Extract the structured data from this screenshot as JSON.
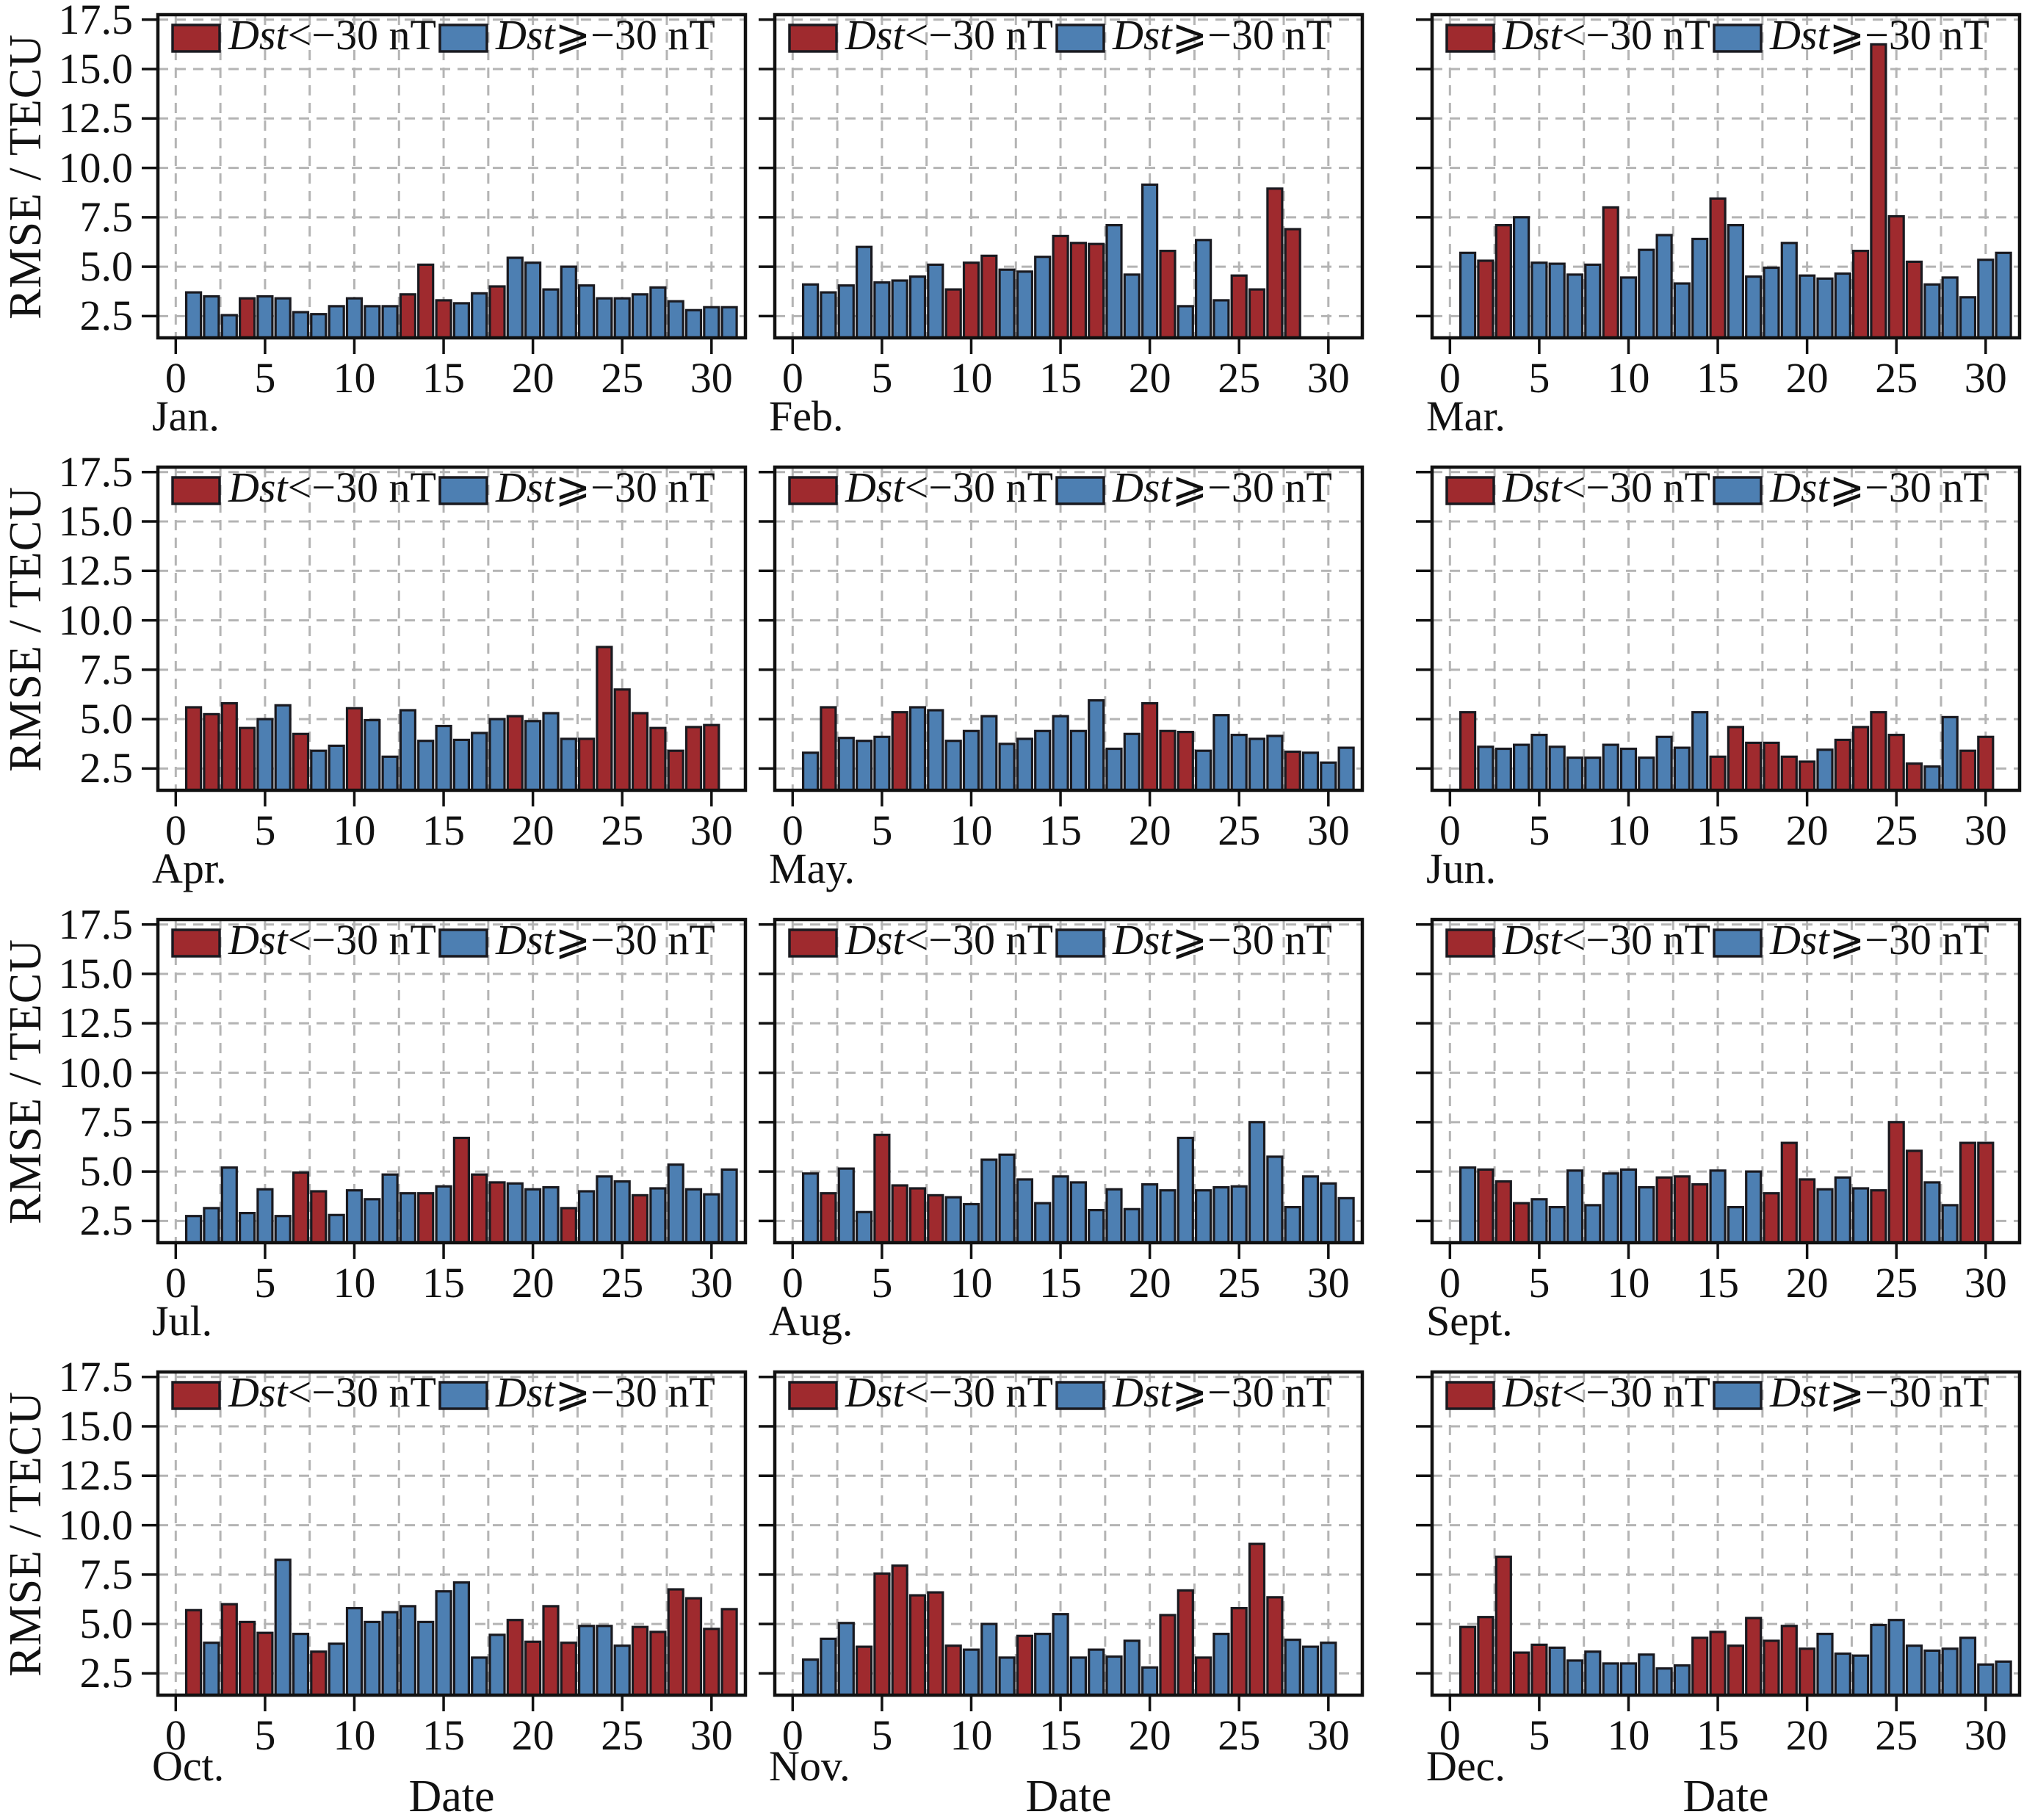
{
  "figure": {
    "ylabel": "RMSE / TECU",
    "xlabel": "Date",
    "y_ticks": [
      17.5,
      15.0,
      12.5,
      10.0,
      7.5,
      5.0,
      2.5
    ],
    "x_ticks": [
      0,
      5,
      10,
      15,
      20,
      25,
      30
    ],
    "ylim": [
      1.4,
      17.75
    ],
    "xlim": [
      -1.0,
      31.9
    ],
    "grid_interval": 2.5,
    "grid_on": true,
    "legend_position": "upper center inside each panel",
    "legend_entries": [
      {
        "variable": "Dst",
        "condition": "<−30 nT",
        "series": "storm"
      },
      {
        "variable": "Dst",
        "condition": "⩾−30 nT",
        "series": "quiet"
      }
    ],
    "colors": {
      "storm": "#9f2a2e",
      "quiet": "#4d7fb2",
      "bar_edge": "#1a1a20",
      "grid": "#b4b4b4",
      "spine": "#111111",
      "background": "#ffffff"
    }
  },
  "chart_data": [
    {
      "type": "bar",
      "month_label": "Jan.",
      "x_unit": "day of month",
      "values": [
        3.7,
        3.5,
        2.55,
        3.4,
        3.5,
        3.4,
        2.7,
        2.6,
        3.0,
        3.4,
        3.0,
        3.0,
        3.6,
        5.1,
        3.3,
        3.15,
        3.65,
        4.0,
        5.45,
        5.2,
        3.85,
        5.0,
        4.05,
        3.4,
        3.4,
        3.6,
        3.95,
        3.25,
        2.8,
        2.95,
        2.95
      ],
      "storm_flags": [
        0,
        0,
        0,
        1,
        0,
        0,
        0,
        0,
        0,
        0,
        0,
        0,
        1,
        1,
        1,
        0,
        0,
        1,
        0,
        0,
        0,
        0,
        0,
        0,
        0,
        0,
        0,
        0,
        0,
        0,
        0
      ]
    },
    {
      "type": "bar",
      "month_label": "Feb.",
      "x_unit": "day of month",
      "values": [
        4.1,
        3.7,
        4.05,
        6.0,
        4.2,
        4.3,
        4.5,
        5.1,
        3.85,
        5.2,
        5.55,
        4.85,
        4.75,
        5.5,
        6.55,
        6.2,
        6.15,
        7.1,
        4.6,
        9.15,
        5.8,
        3.0,
        6.35,
        3.3,
        4.55,
        3.85,
        8.95,
        6.9
      ],
      "storm_flags": [
        0,
        0,
        0,
        0,
        0,
        0,
        0,
        0,
        1,
        1,
        1,
        0,
        0,
        0,
        1,
        1,
        1,
        0,
        0,
        0,
        1,
        0,
        0,
        0,
        1,
        1,
        1,
        1
      ]
    },
    {
      "type": "bar",
      "month_label": "Mar.",
      "x_unit": "day of month",
      "values": [
        5.7,
        5.3,
        7.1,
        7.5,
        5.2,
        5.15,
        4.6,
        5.1,
        8.0,
        4.45,
        5.85,
        6.6,
        4.15,
        6.4,
        8.45,
        7.1,
        4.5,
        4.95,
        6.2,
        4.55,
        4.4,
        4.65,
        5.8,
        16.25,
        7.55,
        5.25,
        4.1,
        4.45,
        3.45,
        5.35,
        5.7
      ],
      "storm_flags": [
        0,
        1,
        1,
        0,
        0,
        0,
        0,
        0,
        1,
        0,
        0,
        0,
        0,
        0,
        1,
        0,
        0,
        0,
        0,
        0,
        0,
        0,
        1,
        1,
        1,
        1,
        0,
        0,
        0,
        0,
        0
      ]
    },
    {
      "type": "bar",
      "month_label": "Apr.",
      "x_unit": "day of month",
      "values": [
        5.6,
        5.25,
        5.8,
        4.55,
        5.0,
        5.7,
        4.25,
        3.4,
        3.65,
        5.55,
        4.95,
        3.1,
        5.45,
        3.9,
        4.65,
        3.95,
        4.3,
        5.0,
        5.15,
        4.9,
        5.3,
        4.0,
        4.0,
        8.65,
        6.5,
        5.3,
        4.55,
        3.4,
        4.6,
        4.7
      ],
      "storm_flags": [
        1,
        1,
        1,
        1,
        0,
        0,
        1,
        0,
        0,
        1,
        0,
        0,
        0,
        0,
        0,
        0,
        0,
        0,
        1,
        0,
        0,
        0,
        1,
        1,
        1,
        1,
        1,
        1,
        1,
        1
      ]
    },
    {
      "type": "bar",
      "month_label": "May.",
      "x_unit": "day of month",
      "values": [
        3.3,
        5.6,
        4.05,
        3.9,
        4.1,
        5.35,
        5.6,
        5.45,
        3.9,
        4.4,
        5.15,
        3.75,
        4.0,
        4.4,
        5.15,
        4.4,
        5.95,
        3.5,
        4.25,
        5.8,
        4.4,
        4.35,
        3.4,
        5.2,
        4.2,
        4.0,
        4.15,
        3.35,
        3.3,
        2.8,
        3.55
      ],
      "storm_flags": [
        0,
        1,
        0,
        0,
        0,
        1,
        0,
        0,
        0,
        0,
        0,
        0,
        0,
        0,
        0,
        0,
        0,
        0,
        0,
        1,
        1,
        1,
        0,
        0,
        0,
        0,
        0,
        1,
        0,
        0,
        0
      ]
    },
    {
      "type": "bar",
      "month_label": "Jun.",
      "x_unit": "day of month",
      "values": [
        5.35,
        3.6,
        3.5,
        3.7,
        4.2,
        3.6,
        3.05,
        3.05,
        3.7,
        3.5,
        3.05,
        4.1,
        3.55,
        5.35,
        3.1,
        4.6,
        3.8,
        3.8,
        3.1,
        2.85,
        3.45,
        3.95,
        4.6,
        5.35,
        4.2,
        2.75,
        2.6,
        5.1,
        3.4,
        4.1
      ],
      "storm_flags": [
        1,
        0,
        0,
        0,
        0,
        0,
        0,
        0,
        0,
        0,
        0,
        0,
        0,
        0,
        1,
        1,
        1,
        1,
        1,
        1,
        0,
        1,
        1,
        1,
        1,
        1,
        0,
        0,
        1,
        1
      ]
    },
    {
      "type": "bar",
      "month_label": "Jul.",
      "x_unit": "day of month",
      "values": [
        2.75,
        3.15,
        5.2,
        2.9,
        4.1,
        2.75,
        4.95,
        4.0,
        2.8,
        4.05,
        3.6,
        4.85,
        3.9,
        3.9,
        4.25,
        6.7,
        4.85,
        4.45,
        4.4,
        4.1,
        4.2,
        3.15,
        4.0,
        4.75,
        4.5,
        3.8,
        4.15,
        5.35,
        4.1,
        3.85,
        5.1
      ],
      "storm_flags": [
        0,
        0,
        0,
        0,
        0,
        0,
        1,
        1,
        0,
        0,
        0,
        0,
        0,
        1,
        0,
        1,
        1,
        1,
        0,
        0,
        0,
        1,
        0,
        0,
        0,
        1,
        0,
        0,
        0,
        0,
        0
      ]
    },
    {
      "type": "bar",
      "month_label": "Aug.",
      "x_unit": "day of month",
      "values": [
        4.9,
        3.9,
        5.15,
        2.95,
        6.85,
        4.3,
        4.15,
        3.8,
        3.7,
        3.35,
        5.6,
        5.85,
        4.6,
        3.4,
        4.75,
        4.45,
        3.05,
        4.1,
        3.1,
        4.35,
        4.05,
        6.7,
        4.05,
        4.2,
        4.25,
        7.5,
        5.75,
        3.2,
        4.75,
        4.4,
        3.65
      ],
      "storm_flags": [
        0,
        1,
        0,
        0,
        1,
        1,
        1,
        1,
        0,
        0,
        0,
        0,
        0,
        0,
        0,
        0,
        0,
        0,
        0,
        0,
        0,
        0,
        0,
        0,
        0,
        0,
        0,
        0,
        0,
        0,
        0
      ]
    },
    {
      "type": "bar",
      "month_label": "Sept.",
      "x_unit": "day of month",
      "values": [
        5.2,
        5.1,
        4.5,
        3.4,
        3.6,
        3.2,
        5.05,
        3.3,
        4.9,
        5.1,
        4.2,
        4.7,
        4.75,
        4.35,
        5.05,
        3.2,
        5.0,
        3.9,
        6.45,
        4.6,
        4.1,
        4.7,
        4.15,
        4.05,
        7.5,
        6.05,
        4.45,
        3.3,
        6.45,
        6.45
      ],
      "storm_flags": [
        0,
        1,
        1,
        1,
        0,
        0,
        0,
        0,
        0,
        0,
        0,
        1,
        1,
        1,
        0,
        0,
        0,
        1,
        1,
        1,
        0,
        0,
        0,
        1,
        1,
        1,
        0,
        0,
        1,
        1
      ]
    },
    {
      "type": "bar",
      "month_label": "Oct.",
      "x_unit": "day of month",
      "values": [
        5.7,
        4.05,
        6.0,
        5.1,
        4.55,
        8.25,
        4.5,
        3.6,
        4.0,
        5.8,
        5.1,
        5.6,
        5.9,
        5.1,
        6.65,
        7.1,
        3.3,
        4.45,
        5.2,
        4.1,
        5.9,
        4.05,
        4.9,
        4.9,
        3.9,
        4.85,
        4.6,
        6.75,
        6.3,
        4.75,
        5.75
      ],
      "storm_flags": [
        1,
        0,
        1,
        1,
        1,
        0,
        0,
        1,
        0,
        0,
        0,
        0,
        0,
        0,
        0,
        0,
        0,
        0,
        1,
        1,
        1,
        1,
        0,
        0,
        0,
        1,
        1,
        1,
        1,
        1,
        1
      ]
    },
    {
      "type": "bar",
      "month_label": "Nov.",
      "x_unit": "day of month",
      "values": [
        3.2,
        4.25,
        5.05,
        3.85,
        7.55,
        7.95,
        6.45,
        6.6,
        3.9,
        3.7,
        5.0,
        3.3,
        4.4,
        4.5,
        5.5,
        3.3,
        3.7,
        3.35,
        4.15,
        2.8,
        5.45,
        6.7,
        3.3,
        4.5,
        5.8,
        9.05,
        6.35,
        4.2,
        3.85,
        4.05
      ],
      "storm_flags": [
        0,
        0,
        0,
        1,
        1,
        1,
        1,
        1,
        1,
        0,
        0,
        0,
        1,
        0,
        0,
        0,
        0,
        0,
        0,
        0,
        1,
        1,
        1,
        0,
        1,
        1,
        1,
        0,
        0,
        0
      ]
    },
    {
      "type": "bar",
      "month_label": "Dec.",
      "x_unit": "day of month",
      "values": [
        4.85,
        5.35,
        8.4,
        3.55,
        3.95,
        3.8,
        3.15,
        3.6,
        3.0,
        3.0,
        3.45,
        2.75,
        2.9,
        4.3,
        4.6,
        3.9,
        5.3,
        4.15,
        4.9,
        3.75,
        4.5,
        3.5,
        3.4,
        4.95,
        5.2,
        3.9,
        3.65,
        3.75,
        4.3,
        2.95,
        3.1
      ],
      "storm_flags": [
        1,
        1,
        1,
        1,
        1,
        0,
        0,
        0,
        0,
        0,
        0,
        0,
        0,
        1,
        1,
        1,
        1,
        1,
        1,
        1,
        0,
        0,
        0,
        0,
        0,
        0,
        0,
        0,
        0,
        0,
        0
      ]
    }
  ]
}
